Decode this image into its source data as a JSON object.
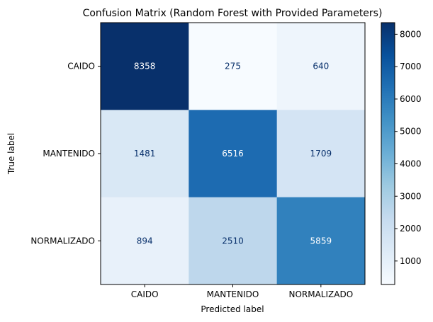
{
  "chart_data": {
    "type": "heatmap",
    "title": "Confusion Matrix (Random Forest with Provided Parameters)",
    "xlabel": "Predicted label",
    "ylabel": "True label",
    "x_categories": [
      "CAIDO",
      "MANTENIDO",
      "NORMALIZADO"
    ],
    "y_categories": [
      "CAIDO",
      "MANTENIDO",
      "NORMALIZADO"
    ],
    "values": [
      [
        8358,
        275,
        640
      ],
      [
        1481,
        6516,
        1709
      ],
      [
        894,
        2510,
        5859
      ]
    ],
    "colormap": "Blues",
    "color_range": [
      275,
      8358
    ],
    "colorbar_ticks": [
      1000,
      2000,
      3000,
      4000,
      5000,
      6000,
      7000,
      8000
    ],
    "grid": false
  }
}
